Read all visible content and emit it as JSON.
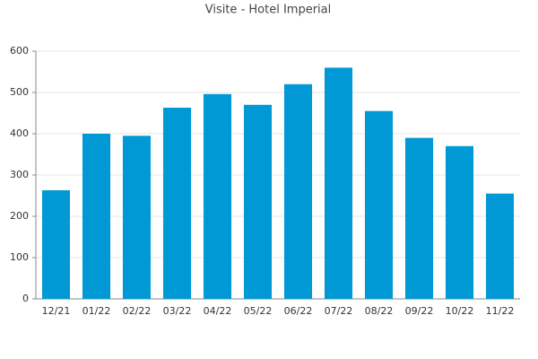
{
  "chart_data": {
    "type": "bar",
    "title": "Visite - Hotel Imperial",
    "categories": [
      "12/21",
      "01/22",
      "02/22",
      "03/22",
      "04/22",
      "05/22",
      "06/22",
      "07/22",
      "08/22",
      "09/22",
      "10/22",
      "11/22"
    ],
    "values": [
      263,
      400,
      395,
      463,
      496,
      470,
      520,
      560,
      455,
      390,
      370,
      255
    ],
    "color": "#0099d6",
    "ylim": [
      0,
      600
    ],
    "yticks": [
      0,
      100,
      200,
      300,
      400,
      500,
      600
    ],
    "grid": true
  }
}
